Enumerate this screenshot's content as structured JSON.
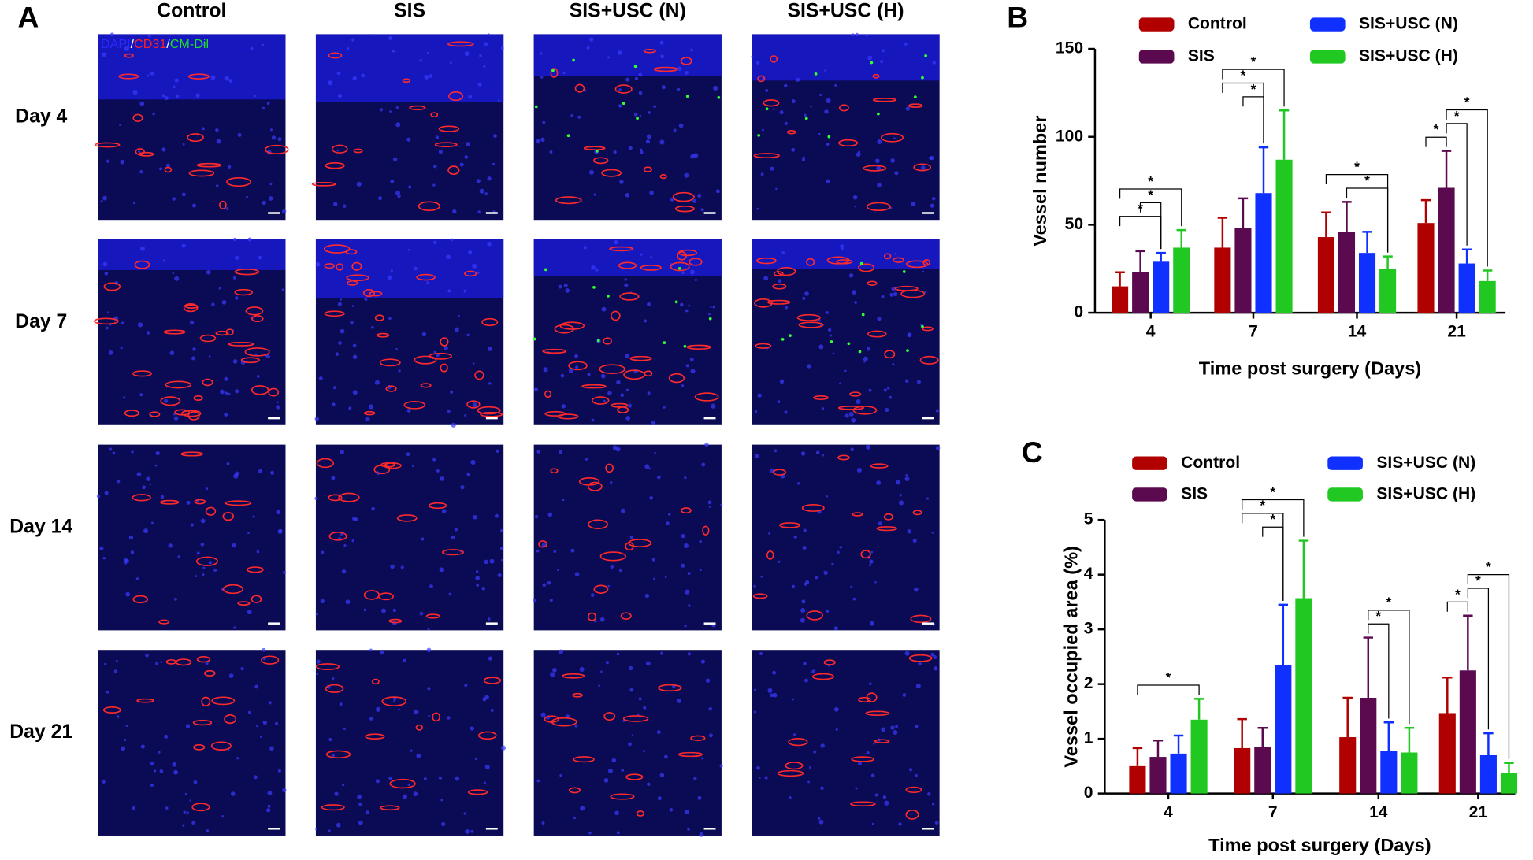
{
  "panel_a": {
    "letter": "A",
    "columns": [
      "Control",
      "SIS",
      "SIS+USC (N)",
      "SIS+USC (H)"
    ],
    "rows": [
      "Day 4",
      "Day 7",
      "Day 14",
      "Day 21"
    ],
    "stain_legend": [
      {
        "text": "DAPI",
        "color": "#2a2aff"
      },
      {
        "text": "/",
        "color": "#ffffff"
      },
      {
        "text": "CD31",
        "color": "#ff2020"
      },
      {
        "text": "/",
        "color": "#ffffff"
      },
      {
        "text": "CM-Dil",
        "color": "#20e020"
      }
    ]
  },
  "chart_data": [
    {
      "type": "bar",
      "letter": "B",
      "ylabel": "Vessel number",
      "xlabel": "Time post surgery (Days)",
      "categories": [
        "4",
        "7",
        "14",
        "21"
      ],
      "ylim": [
        0,
        150
      ],
      "yticks": [
        0,
        50,
        100,
        150
      ],
      "series": [
        {
          "name": "Control",
          "color": "#b00000",
          "values": [
            15,
            37,
            43,
            51
          ],
          "errors": [
            8,
            17,
            14,
            13
          ]
        },
        {
          "name": "SIS",
          "color": "#5c0a50",
          "values": [
            23,
            48,
            46,
            71
          ],
          "errors": [
            12,
            17,
            17,
            21
          ]
        },
        {
          "name": "SIS+USC (N)",
          "color": "#1030ff",
          "values": [
            29,
            68,
            34,
            28
          ],
          "errors": [
            5,
            26,
            12,
            8
          ]
        },
        {
          "name": "SIS+USC (H)",
          "color": "#22c822",
          "values": [
            37,
            87,
            25,
            18
          ],
          "errors": [
            10,
            28,
            7,
            6
          ]
        }
      ],
      "comparisons": [
        [
          {
            "from": 0,
            "to": 2,
            "label": "*"
          },
          {
            "from": 1,
            "to": 2,
            "label": "*"
          },
          {
            "from": 0,
            "to": 3,
            "label": "*"
          }
        ],
        [
          {
            "from": 1,
            "to": 2,
            "label": "*"
          },
          {
            "from": 0,
            "to": 2,
            "label": "*"
          },
          {
            "from": 0,
            "to": 3,
            "label": "*"
          }
        ],
        [
          {
            "from": 1,
            "to": 3,
            "label": "*"
          },
          {
            "from": 0,
            "to": 3,
            "label": "*"
          }
        ],
        [
          {
            "from": 0,
            "to": 1,
            "label": "*"
          },
          {
            "from": 1,
            "to": 2,
            "label": "*"
          },
          {
            "from": 1,
            "to": 3,
            "label": "*"
          }
        ]
      ]
    },
    {
      "type": "bar",
      "letter": "C",
      "ylabel": "Vessel occupied area (%)",
      "xlabel": "Time post surgery (Days)",
      "categories": [
        "4",
        "7",
        "14",
        "21"
      ],
      "ylim": [
        0,
        5
      ],
      "yticks": [
        0,
        1,
        2,
        3,
        4,
        5
      ],
      "series": [
        {
          "name": "Control",
          "color": "#b00000",
          "values": [
            0.5,
            0.83,
            1.03,
            1.47
          ],
          "errors": [
            0.33,
            0.53,
            0.72,
            0.65
          ]
        },
        {
          "name": "SIS",
          "color": "#5c0a50",
          "values": [
            0.67,
            0.85,
            1.75,
            2.25
          ],
          "errors": [
            0.3,
            0.35,
            1.1,
            1.0
          ]
        },
        {
          "name": "SIS+USC (N)",
          "color": "#1030ff",
          "values": [
            0.73,
            2.35,
            0.78,
            0.7
          ],
          "errors": [
            0.33,
            1.1,
            0.52,
            0.4
          ]
        },
        {
          "name": "SIS+USC (H)",
          "color": "#22c822",
          "values": [
            1.35,
            3.57,
            0.75,
            0.38
          ],
          "errors": [
            0.38,
            1.05,
            0.45,
            0.18
          ]
        }
      ],
      "comparisons": [
        [
          {
            "from": 0,
            "to": 3,
            "label": "*"
          }
        ],
        [
          {
            "from": 1,
            "to": 2,
            "label": "*"
          },
          {
            "from": 0,
            "to": 2,
            "label": "*"
          },
          {
            "from": 0,
            "to": 3,
            "label": "*"
          }
        ],
        [
          {
            "from": 1,
            "to": 2,
            "label": "*"
          },
          {
            "from": 1,
            "to": 3,
            "label": "*"
          }
        ],
        [
          {
            "from": 0,
            "to": 1,
            "label": "*"
          },
          {
            "from": 1,
            "to": 2,
            "label": "*"
          },
          {
            "from": 1,
            "to": 3,
            "label": "*"
          }
        ]
      ]
    }
  ]
}
